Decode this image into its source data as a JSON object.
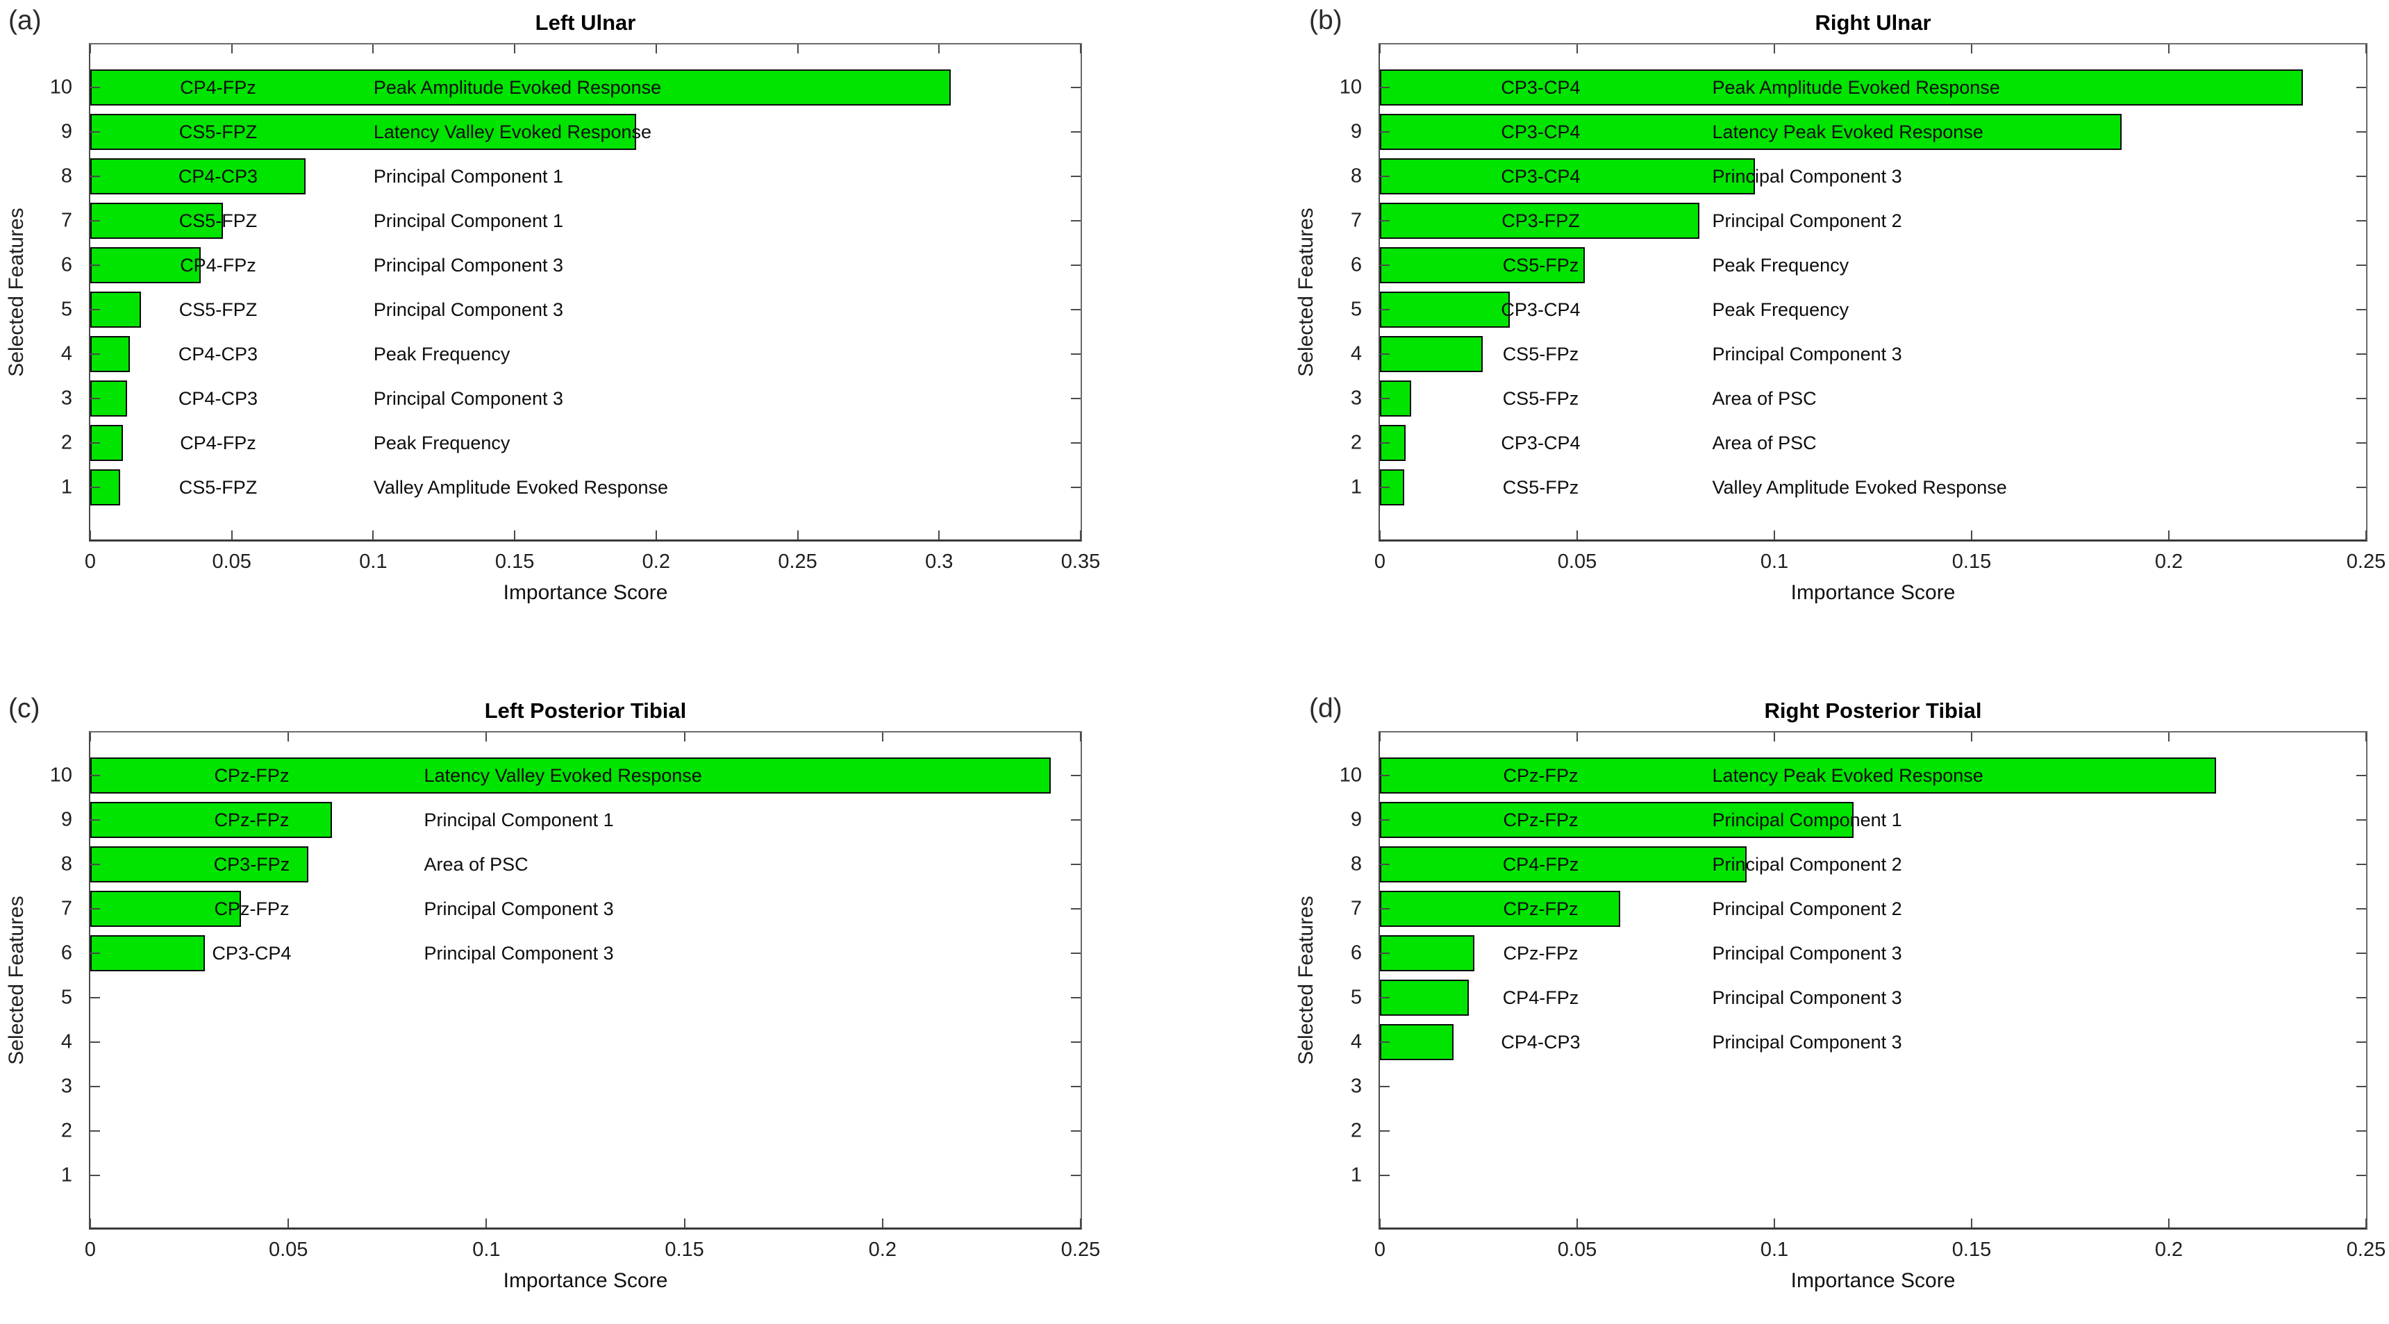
{
  "figure": {
    "xlabel": "Importance Score",
    "ylabel": "Selected Features",
    "bar_color": "#00e400",
    "axis_color": "#4a4a4a"
  },
  "chart_data": [
    {
      "type": "bar",
      "orientation": "horizontal",
      "tag": "(a)",
      "title": "Left Ulnar",
      "xlabel": "Importance Score",
      "ylabel": "Selected Features",
      "xlim": [
        0,
        0.35
      ],
      "xtick_step": 0.05,
      "xtick_labels": [
        "0",
        "0.05",
        "0.1",
        "0.15",
        "0.2",
        "0.25",
        "0.3",
        "0.35"
      ],
      "yticks": [
        "10",
        "9",
        "8",
        "7",
        "6",
        "5",
        "4",
        "3",
        "2",
        "1"
      ],
      "grid": false,
      "bars": [
        {
          "rank": 10,
          "channel": "CP4-FPz",
          "feature": "Peak Amplitude Evoked Response",
          "value": 0.304
        },
        {
          "rank": 9,
          "channel": "CS5-FPZ",
          "feature": "Latency Valley Evoked Response",
          "value": 0.193
        },
        {
          "rank": 8,
          "channel": "CP4-CP3",
          "feature": "Principal Component 1",
          "value": 0.076
        },
        {
          "rank": 7,
          "channel": "CS5-FPZ",
          "feature": "Principal Component 1",
          "value": 0.047
        },
        {
          "rank": 6,
          "channel": "CP4-FPz",
          "feature": "Principal Component 3",
          "value": 0.039
        },
        {
          "rank": 5,
          "channel": "CS5-FPZ",
          "feature": "Principal Component 3",
          "value": 0.018
        },
        {
          "rank": 4,
          "channel": "CP4-CP3",
          "feature": "Peak Frequency",
          "value": 0.014
        },
        {
          "rank": 3,
          "channel": "CP4-CP3",
          "feature": "Principal Component 3",
          "value": 0.013
        },
        {
          "rank": 2,
          "channel": "CP4-FPz",
          "feature": "Peak Frequency",
          "value": 0.0115
        },
        {
          "rank": 1,
          "channel": "CS5-FPZ",
          "feature": "Valley Amplitude Evoked Response",
          "value": 0.0105
        }
      ]
    },
    {
      "type": "bar",
      "orientation": "horizontal",
      "tag": "(b)",
      "title": "Right Ulnar",
      "xlabel": "Importance Score",
      "ylabel": "Selected Features",
      "xlim": [
        0,
        0.25
      ],
      "xtick_step": 0.05,
      "xtick_labels": [
        "0",
        "0.05",
        "0.1",
        "0.15",
        "0.2",
        "0.25"
      ],
      "yticks": [
        "10",
        "9",
        "8",
        "7",
        "6",
        "5",
        "4",
        "3",
        "2",
        "1"
      ],
      "grid": false,
      "bars": [
        {
          "rank": 10,
          "channel": "CP3-CP4",
          "feature": "Peak Amplitude Evoked Response",
          "value": 0.234
        },
        {
          "rank": 9,
          "channel": "CP3-CP4",
          "feature": "Latency Peak Evoked Response",
          "value": 0.188
        },
        {
          "rank": 8,
          "channel": "CP3-CP4",
          "feature": "Principal Component 3",
          "value": 0.095
        },
        {
          "rank": 7,
          "channel": "CP3-FPZ",
          "feature": "Principal Component 2",
          "value": 0.081
        },
        {
          "rank": 6,
          "channel": "CS5-FPz",
          "feature": "Peak Frequency",
          "value": 0.052
        },
        {
          "rank": 5,
          "channel": "CP3-CP4",
          "feature": "Peak Frequency",
          "value": 0.033
        },
        {
          "rank": 4,
          "channel": "CS5-FPz",
          "feature": "Principal Component 3",
          "value": 0.026
        },
        {
          "rank": 3,
          "channel": "CS5-FPz",
          "feature": "Area of PSC",
          "value": 0.008
        },
        {
          "rank": 2,
          "channel": "CP3-CP4",
          "feature": "Area of PSC",
          "value": 0.0066
        },
        {
          "rank": 1,
          "channel": "CS5-FPz",
          "feature": "Valley Amplitude Evoked Response",
          "value": 0.0062
        }
      ]
    },
    {
      "type": "bar",
      "orientation": "horizontal",
      "tag": "(c)",
      "title": "Left Posterior Tibial",
      "xlabel": "Importance Score",
      "ylabel": "Selected Features",
      "xlim": [
        0,
        0.25
      ],
      "xtick_step": 0.05,
      "xtick_labels": [
        "0",
        "0.05",
        "0.1",
        "0.15",
        "0.2",
        "0.25"
      ],
      "yticks": [
        "10",
        "9",
        "8",
        "7",
        "6",
        "5",
        "4",
        "3",
        "2",
        "1"
      ],
      "grid": false,
      "bars": [
        {
          "rank": 10,
          "channel": "CPz-FPz",
          "feature": "Latency Valley Evoked Response",
          "value": 0.2425
        },
        {
          "rank": 9,
          "channel": "CPz-FPz",
          "feature": "Principal Component 1",
          "value": 0.061
        },
        {
          "rank": 8,
          "channel": "CP3-FPz",
          "feature": "Area of PSC",
          "value": 0.055
        },
        {
          "rank": 7,
          "channel": "CPz-FPz",
          "feature": "Principal Component 3",
          "value": 0.038
        },
        {
          "rank": 6,
          "channel": "CP3-CP4",
          "feature": "Principal Component 3",
          "value": 0.029
        }
      ]
    },
    {
      "type": "bar",
      "orientation": "horizontal",
      "tag": "(d)",
      "title": "Right Posterior Tibial",
      "xlabel": "Importance Score",
      "ylabel": "Selected Features",
      "xlim": [
        0,
        0.25
      ],
      "xtick_step": 0.05,
      "xtick_labels": [
        "0",
        "0.05",
        "0.1",
        "0.15",
        "0.2",
        "0.25"
      ],
      "yticks": [
        "10",
        "9",
        "8",
        "7",
        "6",
        "5",
        "4",
        "3",
        "2",
        "1"
      ],
      "grid": false,
      "bars": [
        {
          "rank": 10,
          "channel": "CPz-FPz",
          "feature": "Latency Peak Evoked Response",
          "value": 0.212
        },
        {
          "rank": 9,
          "channel": "CPz-FPz",
          "feature": "Principal Component 1",
          "value": 0.12
        },
        {
          "rank": 8,
          "channel": "CP4-FPz",
          "feature": "Principal Component 2",
          "value": 0.093
        },
        {
          "rank": 7,
          "channel": "CPz-FPz",
          "feature": "Principal Component 2",
          "value": 0.061
        },
        {
          "rank": 6,
          "channel": "CPz-FPz",
          "feature": "Principal Component 3",
          "value": 0.024
        },
        {
          "rank": 5,
          "channel": "CP4-FPz",
          "feature": "Principal Component 3",
          "value": 0.0226
        },
        {
          "rank": 4,
          "channel": "CP4-CP3",
          "feature": "Principal Component 3",
          "value": 0.0186
        }
      ]
    }
  ]
}
